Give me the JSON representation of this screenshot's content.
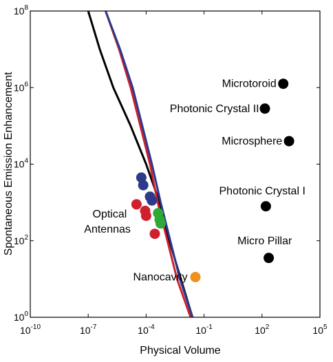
{
  "chart_data": {
    "type": "scatter",
    "xlabel": "Physical Volume",
    "ylabel": "Spontaneous Emission Enhancement",
    "xscale": "log",
    "yscale": "log",
    "xlim_exp": [
      -10,
      5
    ],
    "ylim_exp": [
      0,
      8
    ],
    "x_ticks": [
      {
        "exp": -10,
        "base": "10",
        "sup": "-10"
      },
      {
        "exp": -7,
        "base": "10",
        "sup": "-7"
      },
      {
        "exp": -4,
        "base": "10",
        "sup": "-4"
      },
      {
        "exp": -1,
        "base": "10",
        "sup": "-1"
      },
      {
        "exp": 2,
        "base": "10",
        "sup": "2"
      },
      {
        "exp": 5,
        "base": "10",
        "sup": "5"
      }
    ],
    "y_ticks": [
      {
        "exp": 0,
        "base": "10",
        "sup": "0"
      },
      {
        "exp": 2,
        "base": "10",
        "sup": "2"
      },
      {
        "exp": 4,
        "base": "10",
        "sup": "4"
      },
      {
        "exp": 6,
        "base": "10",
        "sup": "6"
      },
      {
        "exp": 8,
        "base": "10",
        "sup": "8"
      }
    ],
    "grid": false,
    "curves": [
      {
        "color": "#000000",
        "points": [
          [
            -7.0,
            8.0
          ],
          [
            -6.4,
            7.0
          ],
          [
            -5.7,
            6.0
          ],
          [
            -4.8,
            5.0
          ],
          [
            -4.0,
            4.0
          ],
          [
            -3.3,
            3.0
          ],
          [
            -2.8,
            2.0
          ],
          [
            -2.2,
            1.0
          ],
          [
            -1.6,
            0.0
          ]
        ]
      },
      {
        "color": "#d0202e",
        "points": [
          [
            -6.1,
            8.0
          ],
          [
            -5.4,
            7.0
          ],
          [
            -4.8,
            6.0
          ],
          [
            -4.3,
            5.0
          ],
          [
            -3.8,
            4.0
          ],
          [
            -3.4,
            3.0
          ],
          [
            -2.9,
            2.0
          ],
          [
            -2.4,
            1.0
          ],
          [
            -1.7,
            0.0
          ]
        ]
      },
      {
        "color": "#2b3a8a",
        "points": [
          [
            -6.1,
            8.0
          ],
          [
            -5.35,
            7.0
          ],
          [
            -4.7,
            6.0
          ],
          [
            -4.2,
            5.0
          ],
          [
            -3.7,
            4.0
          ],
          [
            -3.25,
            3.0
          ],
          [
            -2.75,
            2.0
          ],
          [
            -2.25,
            1.0
          ],
          [
            -1.6,
            0.0
          ]
        ]
      }
    ],
    "groups": [
      {
        "color": "#2b3a8a",
        "points": [
          [
            -4.25,
            3.65
          ],
          [
            -4.15,
            3.45
          ],
          [
            -3.8,
            3.15
          ],
          [
            -3.7,
            3.05
          ]
        ]
      },
      {
        "color": "#d0202e",
        "points": [
          [
            -4.5,
            2.95
          ],
          [
            -4.05,
            2.78
          ],
          [
            -4.0,
            2.65
          ],
          [
            -3.55,
            2.18
          ]
        ]
      },
      {
        "color": "#2ea836",
        "points": [
          [
            -3.38,
            2.72
          ],
          [
            -3.3,
            2.55
          ],
          [
            -3.25,
            2.45
          ]
        ]
      },
      {
        "color": "#f0901e",
        "points": [
          [
            -1.45,
            1.05
          ]
        ]
      },
      {
        "color": "#000000",
        "points": [
          [
            3.1,
            6.1
          ],
          [
            2.15,
            5.45
          ],
          [
            3.4,
            4.6
          ],
          [
            2.2,
            2.9
          ],
          [
            2.35,
            1.55
          ]
        ]
      }
    ],
    "annotations": [
      {
        "text": "Microtoroid",
        "x": 2.75,
        "y": 6.1,
        "anchor": "end"
      },
      {
        "text": "Photonic Crystal II",
        "x": 1.85,
        "y": 5.45,
        "anchor": "end"
      },
      {
        "text": "Microsphere",
        "x": 3.05,
        "y": 4.6,
        "anchor": "end"
      },
      {
        "text": "Photonic Crystal I",
        "x": 4.25,
        "y": 3.3,
        "anchor": "end"
      },
      {
        "text": "Micro Pillar",
        "x": 3.55,
        "y": 2.0,
        "anchor": "end"
      },
      {
        "text": "Nanocavity",
        "x": -1.85,
        "y": 1.05,
        "anchor": "end"
      },
      {
        "text": "Optical",
        "x": -5.0,
        "y": 2.7,
        "anchor": "end"
      },
      {
        "text": "Antennas",
        "x": -4.8,
        "y": 2.3,
        "anchor": "end"
      }
    ]
  }
}
